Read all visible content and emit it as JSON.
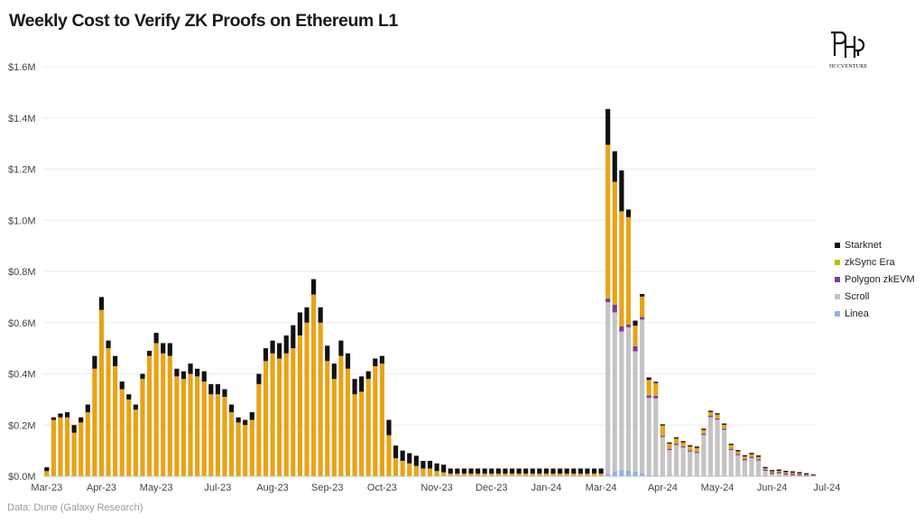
{
  "title": "Weekly Cost to Verify ZK Proofs on Ethereum L1",
  "source": "Data: Dune (Galaxy Research)",
  "logo": {
    "text": "HCCVENTURE"
  },
  "chart_data": {
    "type": "bar",
    "stacked": true,
    "y_unit": "USD",
    "ylim": [
      0,
      1600000
    ],
    "y_ticks": [
      {
        "value": 0,
        "label": "$0.0M"
      },
      {
        "value": 200000,
        "label": "$0.2M"
      },
      {
        "value": 400000,
        "label": "$0.4M"
      },
      {
        "value": 600000,
        "label": "$0.6M"
      },
      {
        "value": 800000,
        "label": "$0.8M"
      },
      {
        "value": 1000000,
        "label": "$1.0M"
      },
      {
        "value": 1200000,
        "label": "$1.2M"
      },
      {
        "value": 1400000,
        "label": "$1.4M"
      },
      {
        "value": 1600000,
        "label": "$1.6M"
      }
    ],
    "x_ticks": [
      {
        "index": 0,
        "label": "Mar-23"
      },
      {
        "index": 8,
        "label": "Apr-23"
      },
      {
        "index": 16,
        "label": "May-23"
      },
      {
        "index": 25,
        "label": "Jul-23"
      },
      {
        "index": 33,
        "label": "Aug-23"
      },
      {
        "index": 41,
        "label": "Sep-23"
      },
      {
        "index": 49,
        "label": "Oct-23"
      },
      {
        "index": 57,
        "label": "Nov-23"
      },
      {
        "index": 65,
        "label": "Dec-23"
      },
      {
        "index": 73,
        "label": "Jan-24"
      },
      {
        "index": 81,
        "label": "Mar-24"
      },
      {
        "index": 90,
        "label": "Apr-24"
      },
      {
        "index": 98,
        "label": "May-24"
      },
      {
        "index": 106,
        "label": "Jun-24"
      },
      {
        "index": 114,
        "label": "Jul-24"
      }
    ],
    "gridlines": true,
    "legend_position": "right",
    "series": [
      {
        "name": "Linea",
        "color": "#8fb3e8",
        "values": [
          0,
          0,
          0,
          0,
          0,
          0,
          0,
          0,
          0,
          0,
          0,
          0,
          0,
          0,
          0,
          0,
          0,
          0,
          0,
          0,
          0,
          0,
          0,
          0,
          0,
          0,
          0,
          0,
          0,
          0,
          0,
          0,
          0,
          0,
          0,
          0,
          0,
          0,
          0,
          0,
          0,
          0,
          0,
          0,
          0,
          0,
          0,
          0,
          0,
          0,
          0,
          0,
          0,
          0,
          0,
          0,
          0,
          0,
          0,
          0,
          0,
          0,
          0,
          0,
          0,
          0,
          0,
          0,
          0,
          0,
          0,
          0,
          0,
          0,
          0,
          0,
          0,
          0,
          0,
          0,
          0,
          0,
          10000,
          20000,
          25000,
          22000,
          18000,
          12000,
          6000,
          4000,
          3000,
          2000,
          2000,
          2000,
          1000,
          1000,
          1000,
          1000,
          1000,
          1000,
          2000,
          2000,
          2000,
          1000,
          1000,
          1000,
          1000,
          1000,
          1000,
          1000,
          1000,
          500,
          500
        ]
      },
      {
        "name": "Scroll",
        "color": "#c4c4c4",
        "values": [
          0,
          0,
          0,
          0,
          0,
          0,
          0,
          0,
          0,
          0,
          0,
          0,
          0,
          0,
          0,
          0,
          0,
          0,
          0,
          0,
          0,
          0,
          0,
          0,
          0,
          0,
          0,
          0,
          0,
          0,
          0,
          0,
          0,
          0,
          0,
          0,
          0,
          0,
          0,
          0,
          0,
          0,
          0,
          0,
          0,
          0,
          0,
          0,
          0,
          0,
          0,
          0,
          0,
          0,
          0,
          0,
          0,
          0,
          0,
          0,
          0,
          0,
          0,
          0,
          0,
          0,
          0,
          0,
          0,
          0,
          0,
          0,
          0,
          0,
          0,
          0,
          0,
          0,
          0,
          0,
          0,
          0,
          670000,
          620000,
          540000,
          560000,
          470000,
          600000,
          300000,
          300000,
          150000,
          100000,
          120000,
          110000,
          95000,
          90000,
          160000,
          230000,
          220000,
          180000,
          100000,
          80000,
          60000,
          70000,
          60000,
          20000,
          8000,
          10000,
          5000,
          3000,
          2000,
          1000,
          500
        ]
      },
      {
        "name": "Polygon zkEVM",
        "color": "#7b3fa0",
        "values": [
          0,
          0,
          0,
          0,
          0,
          0,
          0,
          0,
          0,
          0,
          0,
          0,
          0,
          0,
          0,
          0,
          0,
          0,
          0,
          0,
          0,
          0,
          0,
          0,
          0,
          0,
          0,
          0,
          0,
          0,
          0,
          0,
          0,
          0,
          0,
          0,
          0,
          0,
          0,
          0,
          0,
          0,
          0,
          0,
          0,
          0,
          0,
          0,
          0,
          0,
          0,
          0,
          0,
          0,
          0,
          0,
          0,
          0,
          0,
          0,
          0,
          0,
          0,
          0,
          0,
          0,
          0,
          0,
          0,
          0,
          0,
          0,
          0,
          0,
          0,
          0,
          0,
          0,
          0,
          0,
          0,
          0,
          15000,
          30000,
          20000,
          10000,
          20000,
          10000,
          10000,
          10000,
          5000,
          5000,
          5000,
          5000,
          5000,
          5000,
          5000,
          5000,
          5000,
          5000,
          5000,
          5000,
          5000,
          5000,
          5000,
          5000,
          5000,
          5000,
          5000,
          5000,
          5000,
          3000,
          2000
        ]
      },
      {
        "name": "zkSync Era",
        "color": "#e8a317",
        "values": [
          20000,
          220000,
          230000,
          230000,
          170000,
          210000,
          250000,
          420000,
          650000,
          500000,
          430000,
          340000,
          300000,
          260000,
          380000,
          470000,
          520000,
          480000,
          470000,
          390000,
          380000,
          400000,
          390000,
          370000,
          320000,
          320000,
          310000,
          250000,
          210000,
          200000,
          220000,
          360000,
          450000,
          480000,
          460000,
          480000,
          500000,
          550000,
          600000,
          710000,
          600000,
          450000,
          380000,
          470000,
          420000,
          320000,
          330000,
          380000,
          430000,
          440000,
          160000,
          70000,
          60000,
          50000,
          40000,
          30000,
          30000,
          20000,
          15000,
          10000,
          10000,
          10000,
          10000,
          10000,
          10000,
          10000,
          10000,
          10000,
          10000,
          10000,
          10000,
          10000,
          10000,
          10000,
          10000,
          10000,
          10000,
          10000,
          10000,
          10000,
          10000,
          10000,
          600000,
          480000,
          450000,
          420000,
          80000,
          80000,
          60000,
          50000,
          40000,
          20000,
          20000,
          15000,
          15000,
          15000,
          15000,
          15000,
          15000,
          15000,
          15000,
          10000,
          10000,
          10000,
          10000,
          5000,
          5000,
          5000,
          5000,
          5000,
          3000,
          2000,
          1000
        ]
      },
      {
        "name": "Starknet",
        "color": "#111111",
        "values": [
          15000,
          10000,
          15000,
          20000,
          30000,
          20000,
          30000,
          50000,
          50000,
          30000,
          40000,
          30000,
          20000,
          20000,
          20000,
          20000,
          40000,
          40000,
          50000,
          30000,
          30000,
          40000,
          30000,
          40000,
          40000,
          40000,
          30000,
          30000,
          20000,
          20000,
          30000,
          40000,
          50000,
          50000,
          60000,
          70000,
          90000,
          90000,
          60000,
          60000,
          60000,
          60000,
          60000,
          60000,
          60000,
          60000,
          60000,
          30000,
          30000,
          30000,
          60000,
          50000,
          40000,
          40000,
          40000,
          30000,
          30000,
          30000,
          30000,
          20000,
          20000,
          20000,
          20000,
          20000,
          20000,
          20000,
          20000,
          20000,
          20000,
          20000,
          20000,
          20000,
          20000,
          20000,
          20000,
          20000,
          20000,
          20000,
          20000,
          20000,
          20000,
          20000,
          140000,
          120000,
          160000,
          30000,
          20000,
          10000,
          10000,
          5000,
          5000,
          5000,
          5000,
          5000,
          5000,
          5000,
          5000,
          5000,
          5000,
          5000,
          5000,
          5000,
          5000,
          5000,
          5000,
          5000,
          5000,
          5000,
          5000,
          5000,
          5000,
          5000,
          3000
        ]
      }
    ]
  }
}
